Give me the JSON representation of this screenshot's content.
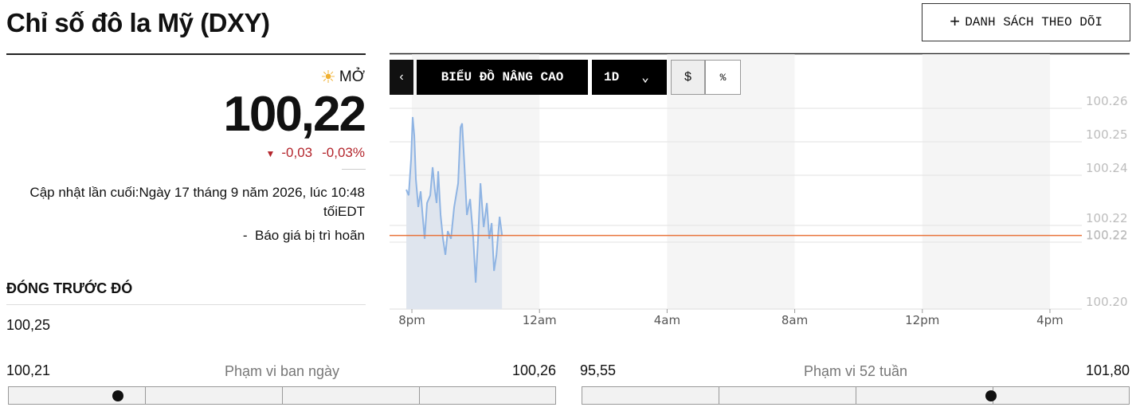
{
  "header": {
    "title": "Chỉ số đô la Mỹ (DXY)",
    "watchlist_button": "DANH SÁCH THEO DÕI"
  },
  "quote": {
    "status": "MỞ",
    "price": {
      "value": 100.22,
      "label": "100,22"
    },
    "change": "-0,03",
    "change_percent": "-0,03%",
    "updated": "Cập nhật lần cuối:Ngày 17 tháng 9 năm 2026, lúc 10:48 tốiEDT",
    "delayed": "-  Báo giá bị trì hoãn"
  },
  "previous_close": {
    "label": "ĐÓNG TRƯỚC ĐÓ",
    "value": "100,25"
  },
  "toolbar": {
    "advanced_chart": "BIỂU ĐỒ NÂNG CAO",
    "period": "1D",
    "dollar": "$",
    "percent": "%"
  },
  "ranges": [
    {
      "label": "Phạm vi ban ngày",
      "low": {
        "value": 100.21,
        "label": "100,21"
      },
      "high": {
        "value": 100.26,
        "label": "100,26"
      }
    },
    {
      "label": "Phạm vi 52 tuần",
      "low": {
        "value": 95.55,
        "label": "95,55"
      },
      "high": {
        "value": 101.8,
        "label": "101,80"
      }
    }
  ],
  "chart_data": {
    "type": "line",
    "color": "#8fb4e3",
    "grid": true,
    "x": [
      -0.175,
      -0.1,
      -0.025,
      0.025,
      0.075,
      0.125,
      0.2,
      0.275,
      0.325,
      0.4,
      0.475,
      0.575,
      0.65,
      0.725,
      0.775,
      0.825,
      0.9,
      0.975,
      1.05,
      1.125,
      1.225,
      1.325,
      1.45,
      1.525,
      1.575,
      1.65,
      1.725,
      1.825,
      1.925,
      2.0,
      2.075,
      2.15,
      2.25,
      2.35,
      2.425,
      2.5,
      2.575,
      2.65,
      2.75,
      2.825
    ],
    "values": [
      100.2357,
      100.234,
      100.2448,
      100.2574,
      100.2519,
      100.2388,
      100.2305,
      100.2352,
      100.2293,
      100.221,
      100.2317,
      100.234,
      100.2424,
      100.2352,
      100.2317,
      100.2412,
      100.2281,
      100.221,
      100.2162,
      100.2233,
      100.221,
      100.2305,
      100.2376,
      100.2543,
      100.2555,
      100.2424,
      100.2281,
      100.2329,
      100.221,
      100.2079,
      100.221,
      100.2376,
      100.2245,
      100.2317,
      100.221,
      100.2257,
      100.2114,
      100.2162,
      100.2276,
      100.2221
    ],
    "xlim": [
      -0.7,
      21.0
    ],
    "xticks": [
      {
        "value": 0,
        "label": "8pm"
      },
      {
        "value": 4,
        "label": "12am"
      },
      {
        "value": 8,
        "label": "4am"
      },
      {
        "value": 12,
        "label": "8am"
      },
      {
        "value": 16,
        "label": "12pm"
      },
      {
        "value": 20,
        "label": "4pm"
      }
    ],
    "ylim": [
      100.2,
      100.275
    ],
    "yticks": [
      100.26,
      100.25,
      100.24,
      {
        "value": 100.225,
        "label": "100.22"
      },
      100.22,
      {
        "value": 100.2,
        "label": "100.20"
      }
    ],
    "reference_line": {
      "value": 100.222,
      "label": "100.22",
      "color": "#e8733a"
    }
  }
}
